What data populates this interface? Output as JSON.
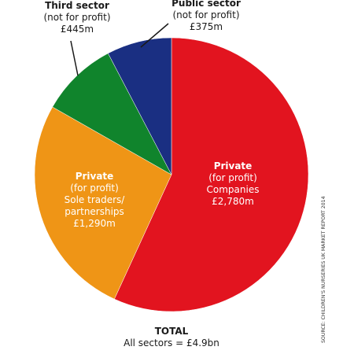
{
  "chart_data": {
    "type": "pie",
    "total": {
      "title": "TOTAL",
      "text": "All sectors = £4.9bn"
    },
    "slices": [
      {
        "label": "Private",
        "sub1": "(for profit)",
        "sub2": "Companies",
        "sub3": "",
        "amount": "£2,780m",
        "value": 2780,
        "color": "#e2141f",
        "label_color": "#ffffff"
      },
      {
        "label": "Private",
        "sub1": "(for profit)",
        "sub2": "Sole traders/",
        "sub3": "partnerships",
        "amount": "£1,290m",
        "value": 1290,
        "color": "#ef9516",
        "label_color": "#ffffff"
      },
      {
        "label": "Third sector",
        "sub1": "(not for profit)",
        "sub2": "",
        "sub3": "",
        "amount": "£445m",
        "value": 445,
        "color": "#10842c",
        "label_color": "#1a1a1a"
      },
      {
        "label": "Public sector",
        "sub1": "(not for profit)",
        "sub2": "",
        "sub3": "",
        "amount": "£375m",
        "value": 375,
        "color": "#1a2f82",
        "label_color": "#1a1a1a"
      }
    ],
    "source": "SOURCE: CHILDREN'S NURSERIES UK MARKET REPORT 2014"
  }
}
